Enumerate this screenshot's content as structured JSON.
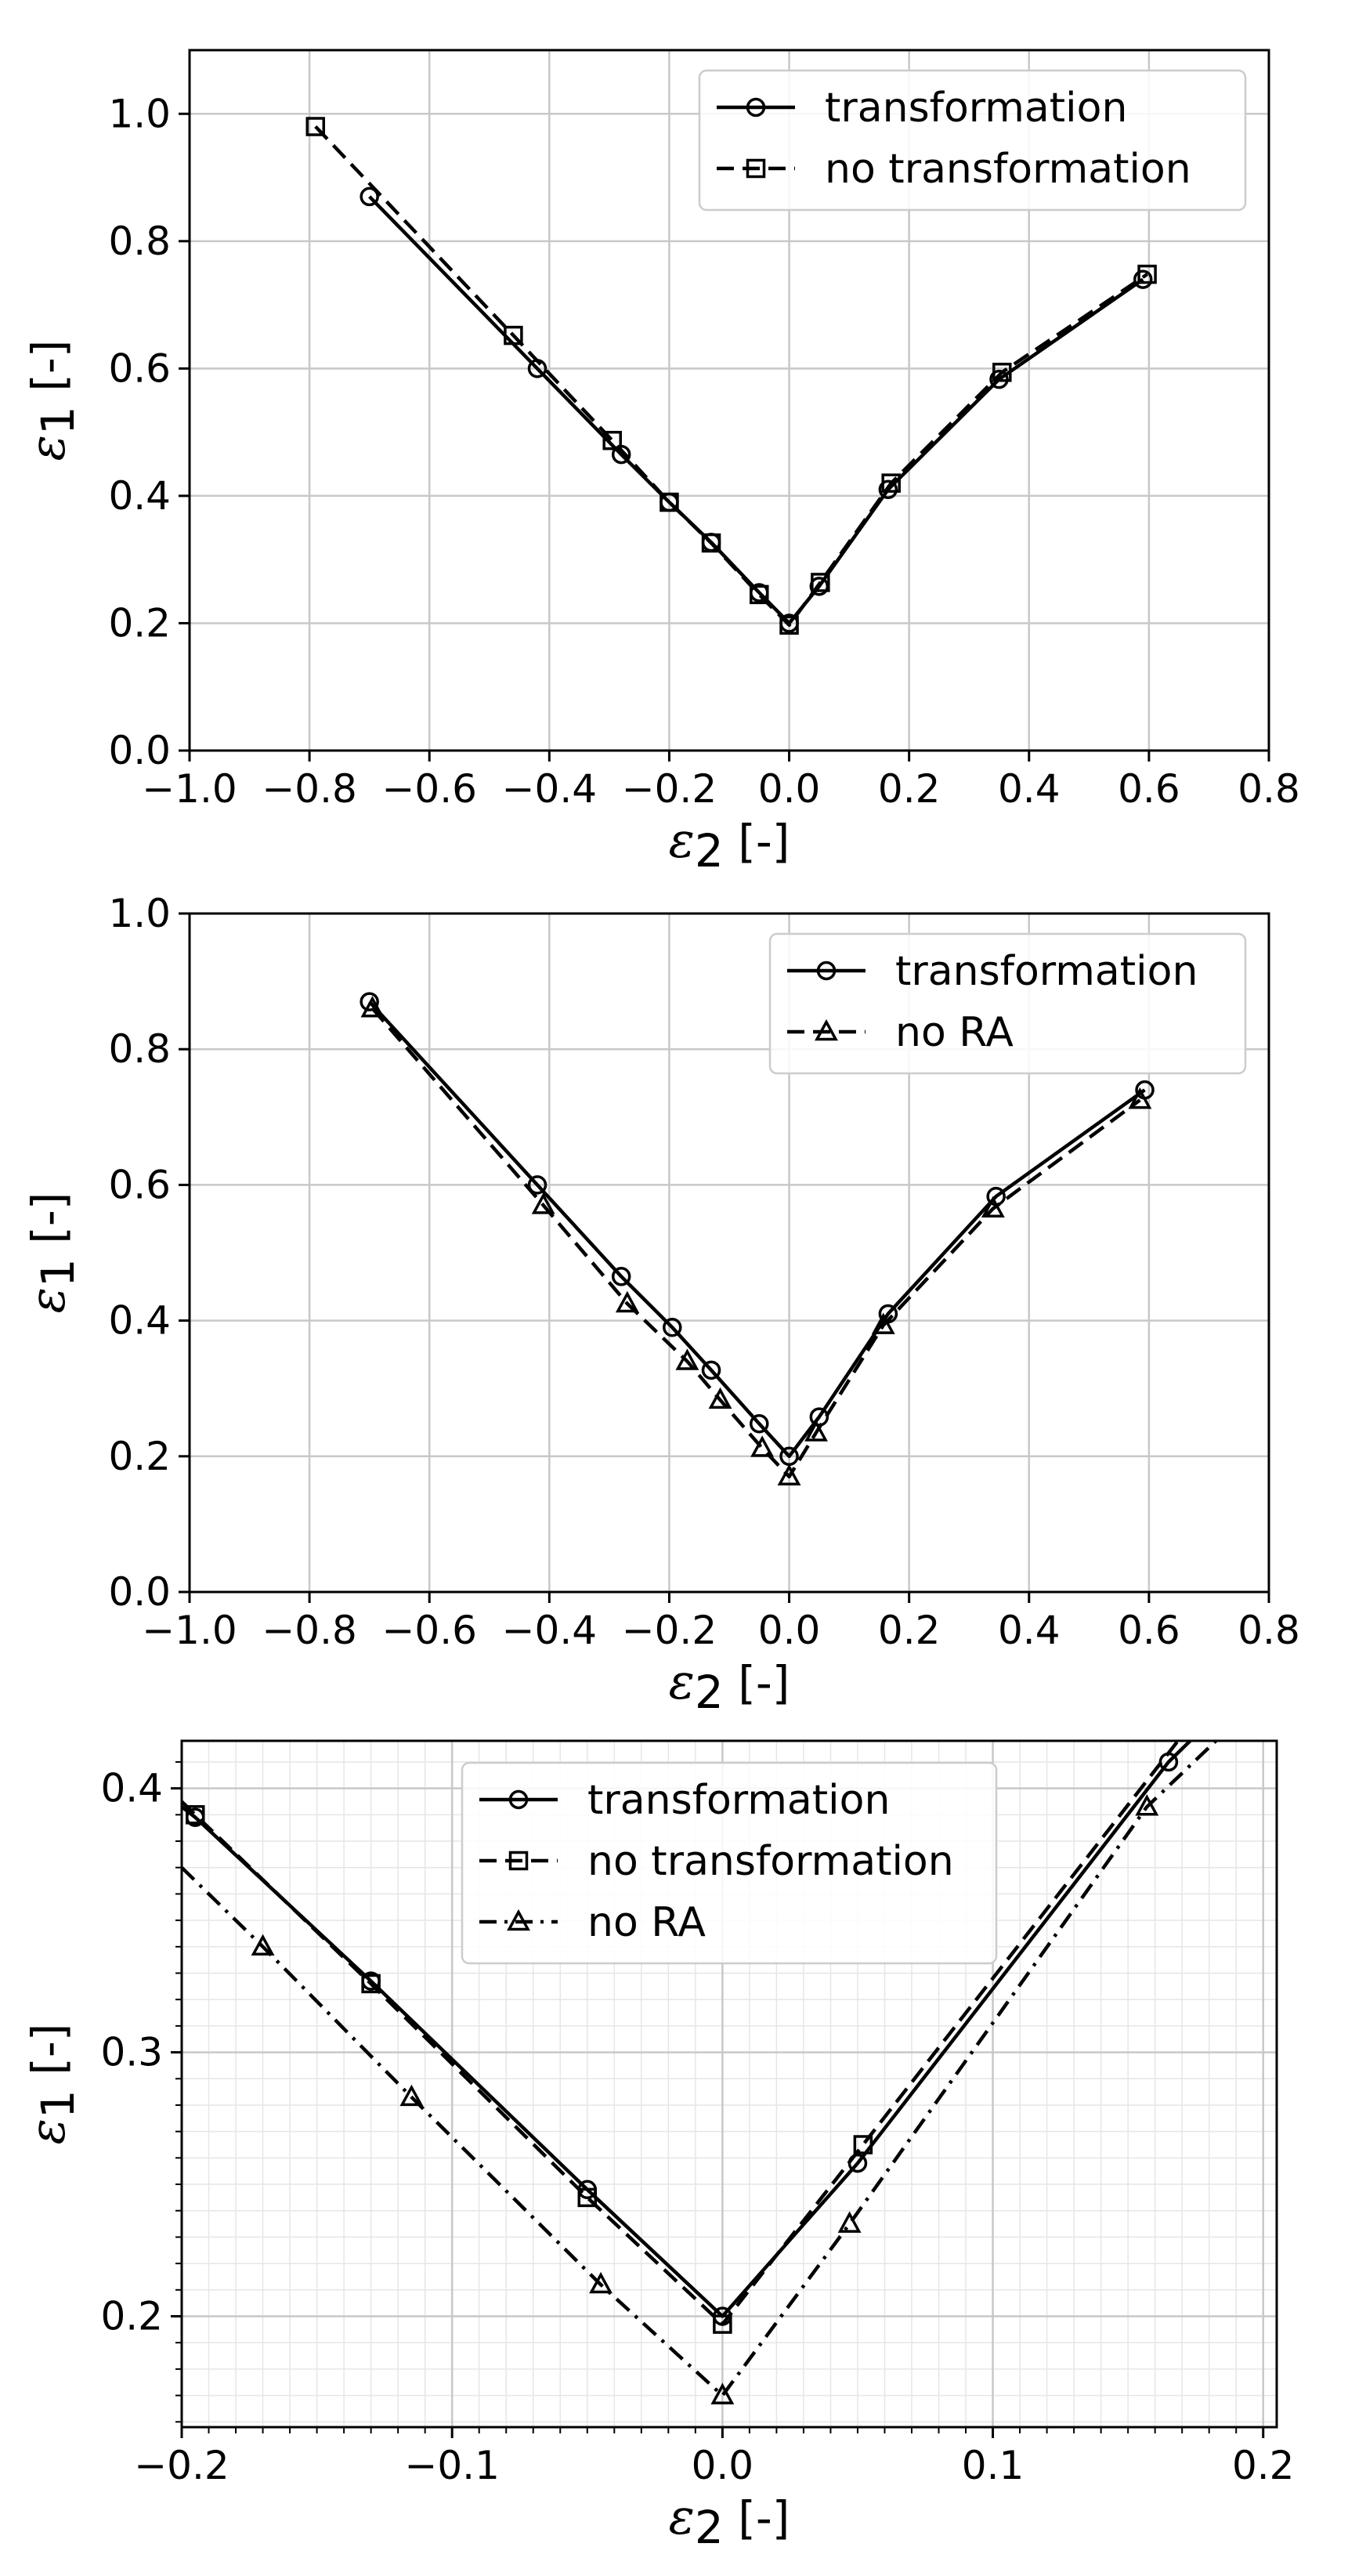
{
  "chart_data": [
    {
      "type": "line",
      "title": "",
      "xlabel": "ε₂ [-]",
      "ylabel": "ε₁ [-]",
      "xlim": [
        -1.0,
        0.8
      ],
      "ylim": [
        0.0,
        1.1
      ],
      "xticks": [
        -1.0,
        -0.8,
        -0.6,
        -0.4,
        -0.2,
        0.0,
        0.2,
        0.4,
        0.6,
        0.8
      ],
      "xtick_labels": [
        "−1.0",
        "−0.8",
        "−0.6",
        "−0.4",
        "−0.2",
        "0.0",
        "0.2",
        "0.4",
        "0.6",
        "0.8"
      ],
      "yticks": [
        0.0,
        0.2,
        0.4,
        0.6,
        0.8,
        1.0
      ],
      "ytick_labels": [
        "0.0",
        "0.2",
        "0.4",
        "0.6",
        "0.8",
        "1.0"
      ],
      "grid": true,
      "legend_position": "top-right",
      "series": [
        {
          "name": "transformation",
          "linestyle": "solid",
          "marker": "circle",
          "x": [
            -0.7,
            -0.42,
            -0.28,
            -0.2,
            -0.13,
            -0.05,
            0.0,
            0.05,
            0.165,
            0.35,
            0.59
          ],
          "y": [
            0.87,
            0.6,
            0.465,
            0.39,
            0.327,
            0.248,
            0.2,
            0.258,
            0.41,
            0.583,
            0.74
          ]
        },
        {
          "name": "no transformation",
          "linestyle": "dashed",
          "marker": "square",
          "x": [
            -0.79,
            -0.46,
            -0.295,
            -0.2,
            -0.13,
            -0.05,
            0.0,
            0.052,
            0.17,
            0.355,
            0.597
          ],
          "y": [
            0.98,
            0.652,
            0.487,
            0.39,
            0.326,
            0.245,
            0.197,
            0.264,
            0.42,
            0.594,
            0.748
          ]
        }
      ]
    },
    {
      "type": "line",
      "title": "",
      "xlabel": "ε₂ [-]",
      "ylabel": "ε₁ [-]",
      "xlim": [
        -1.0,
        0.8
      ],
      "ylim": [
        0.0,
        1.0
      ],
      "xticks": [
        -1.0,
        -0.8,
        -0.6,
        -0.4,
        -0.2,
        0.0,
        0.2,
        0.4,
        0.6,
        0.8
      ],
      "xtick_labels": [
        "−1.0",
        "−0.8",
        "−0.6",
        "−0.4",
        "−0.2",
        "0.0",
        "0.2",
        "0.4",
        "0.6",
        "0.8"
      ],
      "yticks": [
        0.0,
        0.2,
        0.4,
        0.6,
        0.8,
        1.0
      ],
      "ytick_labels": [
        "0.0",
        "0.2",
        "0.4",
        "0.6",
        "0.8",
        "1.0"
      ],
      "grid": true,
      "legend_position": "top-right",
      "series": [
        {
          "name": "transformation",
          "linestyle": "solid",
          "marker": "circle",
          "x": [
            -0.7,
            -0.42,
            -0.28,
            -0.195,
            -0.13,
            -0.05,
            0.0,
            0.05,
            0.165,
            0.345,
            0.593
          ],
          "y": [
            0.87,
            0.6,
            0.465,
            0.39,
            0.327,
            0.248,
            0.2,
            0.258,
            0.41,
            0.583,
            0.74
          ]
        },
        {
          "name": "no RA",
          "linestyle": "dashed",
          "marker": "triangle",
          "x": [
            -0.695,
            -0.41,
            -0.27,
            -0.17,
            -0.115,
            -0.045,
            0.0,
            0.045,
            0.157,
            0.34,
            0.585
          ],
          "y": [
            0.86,
            0.57,
            0.425,
            0.34,
            0.283,
            0.212,
            0.17,
            0.235,
            0.393,
            0.565,
            0.725
          ]
        }
      ]
    },
    {
      "type": "line",
      "title": "",
      "xlabel": "ε₂ [-]",
      "ylabel": "ε₁ [-]",
      "xlim": [
        -0.2,
        0.205
      ],
      "ylim": [
        0.158,
        0.418
      ],
      "xticks": [
        -0.2,
        -0.1,
        0.0,
        0.1,
        0.2
      ],
      "xtick_labels": [
        "−0.2",
        "−0.1",
        "0.0",
        "0.1",
        "0.2"
      ],
      "yticks": [
        0.2,
        0.3,
        0.4
      ],
      "ytick_labels": [
        "0.2",
        "0.3",
        "0.4"
      ],
      "grid": true,
      "minor_grid": true,
      "legend_position": "top-center",
      "series": [
        {
          "name": "transformation",
          "linestyle": "solid",
          "marker": "circle",
          "x": [
            -0.2,
            -0.195,
            -0.13,
            -0.05,
            0.0,
            0.05,
            0.165,
            0.205
          ],
          "y": [
            0.393,
            0.389,
            0.327,
            0.248,
            0.2,
            0.258,
            0.41,
            0.45
          ],
          "marker_x": [
            -0.195,
            -0.13,
            -0.05,
            0.0,
            0.05,
            0.165
          ],
          "marker_y": [
            0.389,
            0.327,
            0.248,
            0.2,
            0.258,
            0.41
          ]
        },
        {
          "name": "no transformation",
          "linestyle": "dashed",
          "marker": "square",
          "x": [
            -0.2,
            -0.195,
            -0.13,
            -0.05,
            0.0,
            0.052,
            0.17
          ],
          "y": [
            0.395,
            0.39,
            0.326,
            0.245,
            0.197,
            0.265,
            0.42
          ],
          "marker_x": [
            -0.195,
            -0.13,
            -0.05,
            0.0,
            0.052
          ],
          "marker_y": [
            0.39,
            0.326,
            0.245,
            0.197,
            0.265
          ]
        },
        {
          "name": "no RA",
          "linestyle": "dashdot",
          "marker": "triangle",
          "x": [
            -0.2,
            -0.17,
            -0.115,
            -0.045,
            0.0,
            0.047,
            0.157,
            0.205
          ],
          "y": [
            0.37,
            0.34,
            0.283,
            0.212,
            0.17,
            0.235,
            0.393,
            0.44
          ],
          "marker_x": [
            -0.17,
            -0.115,
            -0.045,
            0.0,
            0.047,
            0.157
          ],
          "marker_y": [
            0.34,
            0.283,
            0.212,
            0.17,
            0.235,
            0.393
          ]
        }
      ]
    }
  ]
}
